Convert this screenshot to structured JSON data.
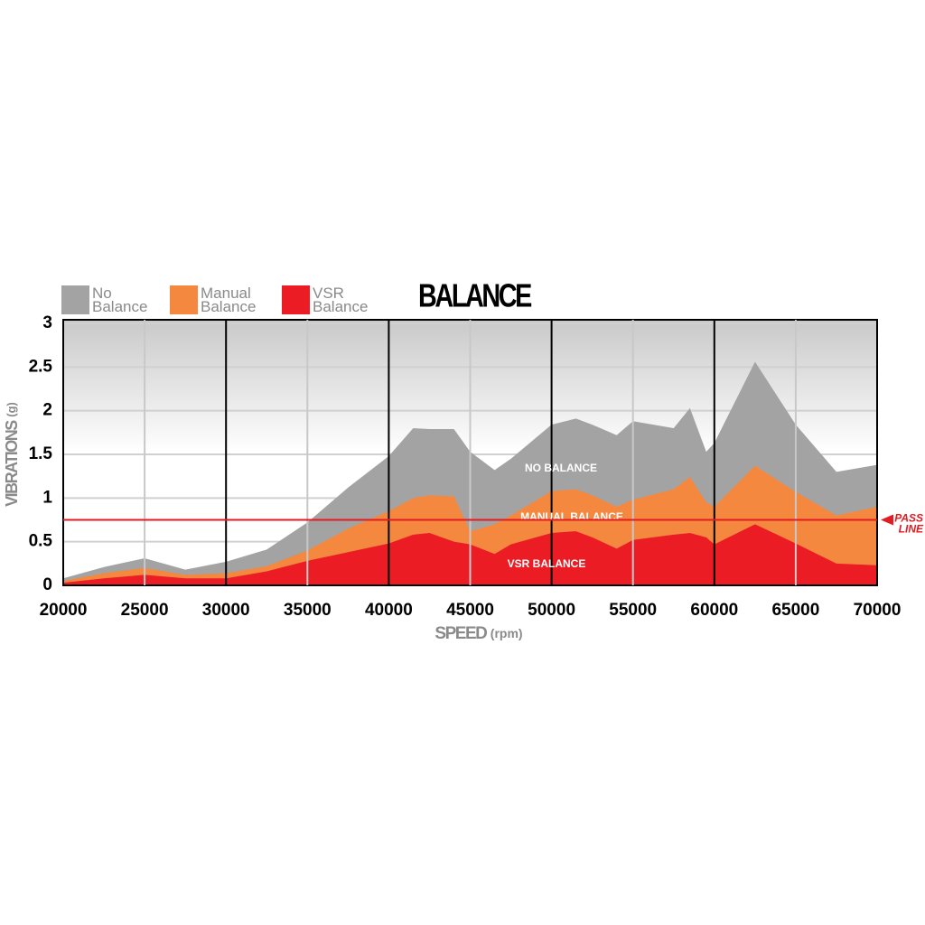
{
  "chart_data": {
    "type": "area",
    "title": "BALANCE",
    "y_label": "VIBRATIONS",
    "y_unit": "(g)",
    "x_label": "SPEED",
    "x_unit": "(rpm)",
    "x": [
      20000,
      22500,
      25000,
      27500,
      30000,
      32500,
      35000,
      37500,
      40000,
      41500,
      42500,
      44000,
      45000,
      46500,
      47500,
      50000,
      51500,
      52500,
      54000,
      55000,
      57500,
      58500,
      59500,
      60000,
      62500,
      65000,
      67500,
      70000
    ],
    "series": [
      {
        "name": "No Balance",
        "color": "#a3a3a3",
        "label": "NO BALANCE",
        "values": [
          0.08,
          0.21,
          0.31,
          0.18,
          0.27,
          0.41,
          0.72,
          1.12,
          1.48,
          1.8,
          1.79,
          1.79,
          1.53,
          1.32,
          1.45,
          1.84,
          1.91,
          1.84,
          1.72,
          1.88,
          1.8,
          2.03,
          1.53,
          1.63,
          2.56,
          1.84,
          1.3,
          1.38
        ]
      },
      {
        "name": "Manual Balance",
        "color": "#f5883f",
        "label": "MANUAL BALANCE",
        "values": [
          0.05,
          0.14,
          0.2,
          0.12,
          0.14,
          0.22,
          0.4,
          0.65,
          0.85,
          1.0,
          1.03,
          1.02,
          0.62,
          0.7,
          0.8,
          1.08,
          1.1,
          1.03,
          0.9,
          0.98,
          1.1,
          1.24,
          0.95,
          0.9,
          1.37,
          1.07,
          0.8,
          0.9
        ]
      },
      {
        "name": "VSR Balance",
        "color": "#ec1c24",
        "label": "VSR BALANCE",
        "values": [
          0.03,
          0.08,
          0.12,
          0.08,
          0.08,
          0.16,
          0.28,
          0.38,
          0.48,
          0.58,
          0.6,
          0.5,
          0.47,
          0.36,
          0.47,
          0.6,
          0.62,
          0.55,
          0.42,
          0.52,
          0.58,
          0.6,
          0.55,
          0.47,
          0.7,
          0.48,
          0.25,
          0.23
        ]
      }
    ],
    "pass_line": {
      "value": 0.75,
      "label": [
        "PASS",
        "LINE"
      ],
      "color": "#e31b23"
    },
    "xlim": [
      20000,
      70000
    ],
    "xticks": [
      20000,
      25000,
      30000,
      35000,
      40000,
      45000,
      50000,
      55000,
      60000,
      65000,
      70000
    ],
    "ylim": [
      0,
      3
    ],
    "yticks": [
      0,
      0.5,
      1,
      1.5,
      2,
      2.5,
      3
    ],
    "grid": true
  }
}
